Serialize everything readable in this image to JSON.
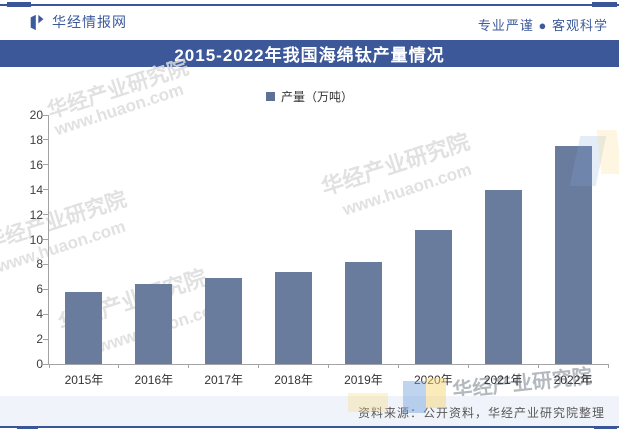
{
  "header": {
    "brand": "华经情报网",
    "slogan": "专业严谨 ● 客观科学"
  },
  "title": "2015-2022年我国海绵钛产量情况",
  "legend": {
    "label": "产量（万吨）"
  },
  "chart_data": {
    "type": "bar",
    "categories": [
      "2015年",
      "2016年",
      "2017年",
      "2018年",
      "2019年",
      "2020年",
      "2021年",
      "2022年"
    ],
    "values": [
      5.8,
      6.4,
      6.9,
      7.4,
      8.2,
      10.8,
      14.0,
      17.5
    ],
    "title": "2015-2022年我国海绵钛产量情况",
    "xlabel": "",
    "ylabel": "产量（万吨）",
    "ylim": [
      0,
      20
    ],
    "ytick_step": 2,
    "grid": false,
    "legend_position": "top-center",
    "bar_color": "#6A7C9E"
  },
  "source": {
    "text": "资料来源：公开资料，华经产业研究院整理"
  },
  "watermark": {
    "brand_text": "华经产业研究院",
    "site_text": "www.huaon.com"
  },
  "colors": {
    "accent": "#3A5699",
    "title_bar": "#3C5899",
    "bar": "#6A7C9E",
    "legend_marker": "#5E7096",
    "axis": "#A3A3A3",
    "source_strip": "#F0F3F9"
  }
}
